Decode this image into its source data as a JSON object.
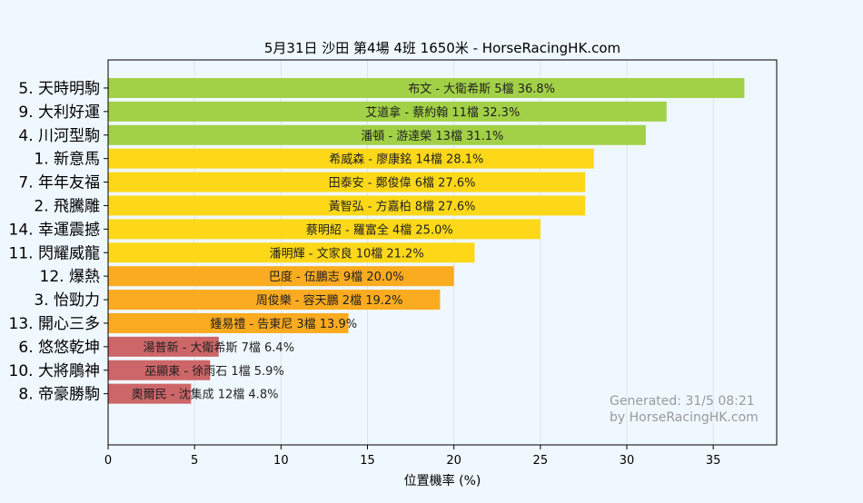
{
  "chart_data": {
    "type": "bar",
    "orientation": "horizontal",
    "title": "5月31日  沙田  第4場  4班  1650米 - HorseRacingHK.com",
    "xlabel": "位置機率 (%)",
    "ylabel": "",
    "xlim": [
      0,
      38.67
    ],
    "xticks": [
      0,
      5,
      10,
      15,
      20,
      25,
      30,
      35
    ],
    "grid": "vertical",
    "categories": [
      "5. 天時明駒",
      "9. 大利好運",
      "4. 川河型駒",
      "1. 新意馬",
      "7. 年年友福",
      "2. 飛騰雕",
      "14. 幸運震撼",
      "11. 閃耀威龍",
      "12. 爆熱",
      "3. 怡勁力",
      "13. 開心三多",
      "6. 悠悠乾坤",
      "10. 大將鵰神",
      "8. 帝豪勝駒"
    ],
    "values": [
      36.8,
      32.3,
      31.1,
      28.1,
      27.6,
      27.6,
      25.0,
      21.2,
      20.0,
      19.2,
      13.9,
      6.4,
      5.9,
      4.8
    ],
    "labels": [
      "布文 - 大衛希斯 5檔  36.8%",
      "艾道拿 - 蔡約翰 11檔  32.3%",
      "潘頓 - 游達榮 13檔  31.1%",
      "希威森 - 廖康銘 14檔  28.1%",
      "田泰安 - 鄭俊偉 6檔  27.6%",
      "黃智弘 - 方嘉柏 8檔  27.6%",
      "蔡明紹 - 羅富全 4檔  25.0%",
      "潘明輝 - 文家良 10檔  21.2%",
      "巴度 - 伍鵬志 9檔  20.0%",
      "周俊樂 - 容天鵬 2檔  19.2%",
      "鍾易禮 - 告東尼 3檔  13.9%",
      "湯普新 - 大衛希斯 7檔  6.4%",
      "巫顯東 - 徐雨石 1檔  5.9%",
      "奧爾民 - 沈集成 12檔  4.8%"
    ],
    "colors": [
      "#a2d147",
      "#a2d147",
      "#a2d147",
      "#fdd819",
      "#fdd819",
      "#fdd819",
      "#fdd819",
      "#fdd819",
      "#fbab1f",
      "#fbab1f",
      "#fbab1f",
      "#cd6668",
      "#cd6668",
      "#cd6668"
    ],
    "annotation": [
      "Generated: 31/5 08:21",
      "by HorseRacingHK.com"
    ]
  }
}
